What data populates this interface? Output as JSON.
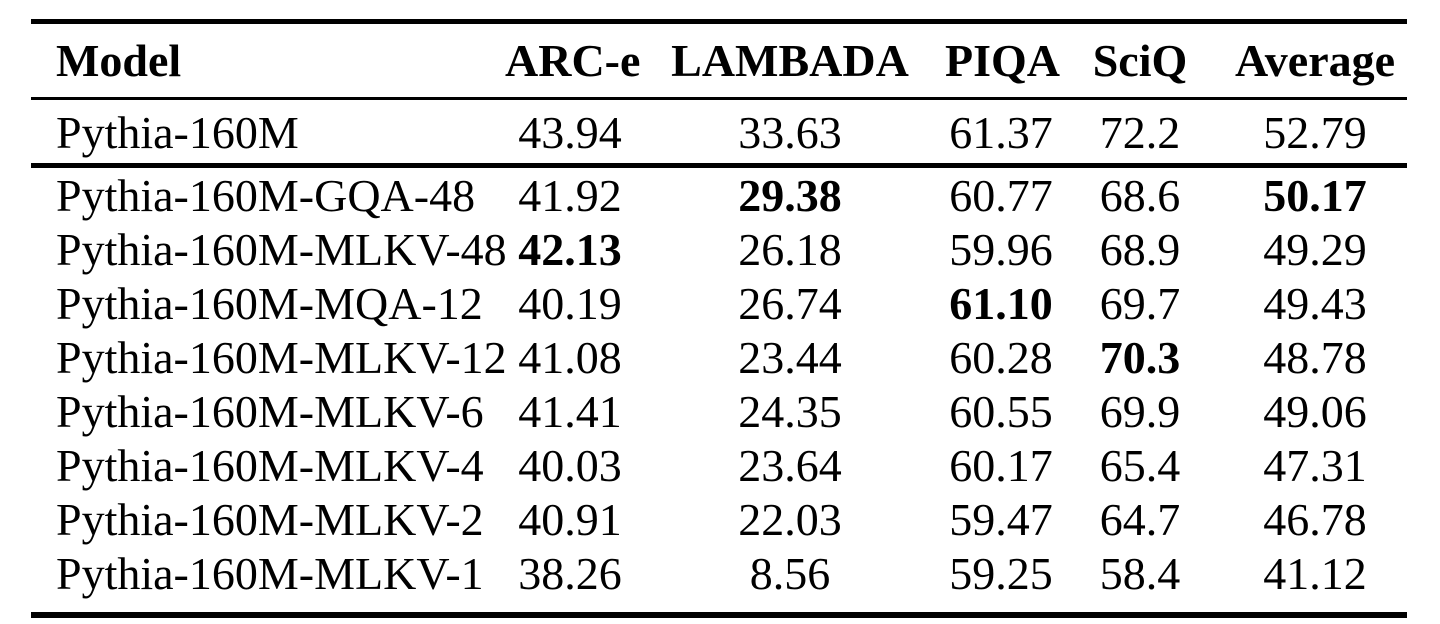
{
  "page": {
    "background_color": "#ffffff",
    "text_color": "#000000"
  },
  "table": {
    "columns": [
      {
        "label": "Model",
        "align": "left"
      },
      {
        "label": "ARC-e",
        "align": "center"
      },
      {
        "label": "LAMBADA",
        "align": "center"
      },
      {
        "label": "PIQA",
        "align": "center"
      },
      {
        "label": "SciQ",
        "align": "center"
      },
      {
        "label": "Average",
        "align": "center"
      }
    ],
    "rows": [
      {
        "cells": [
          "Pythia-160M",
          "43.94",
          "33.63",
          "61.37",
          "72.2",
          "52.79"
        ],
        "bold_cells": [],
        "section": "baseline"
      },
      {
        "cells": [
          "Pythia-160M-GQA-48",
          "41.92",
          "29.38",
          "60.77",
          "68.6",
          "50.17"
        ],
        "bold_cells": [
          2,
          5
        ],
        "section": "variants"
      },
      {
        "cells": [
          "Pythia-160M-MLKV-48",
          "42.13",
          "26.18",
          "59.96",
          "68.9",
          "49.29"
        ],
        "bold_cells": [
          1
        ],
        "section": "variants"
      },
      {
        "cells": [
          "Pythia-160M-MQA-12",
          "40.19",
          "26.74",
          "61.10",
          "69.7",
          "49.43"
        ],
        "bold_cells": [
          3
        ],
        "section": "variants"
      },
      {
        "cells": [
          "Pythia-160M-MLKV-12",
          "41.08",
          "23.44",
          "60.28",
          "70.3",
          "48.78"
        ],
        "bold_cells": [
          4
        ],
        "section": "variants"
      },
      {
        "cells": [
          "Pythia-160M-MLKV-6",
          "41.41",
          "24.35",
          "60.55",
          "69.9",
          "49.06"
        ],
        "bold_cells": [],
        "section": "variants"
      },
      {
        "cells": [
          "Pythia-160M-MLKV-4",
          "40.03",
          "23.64",
          "60.17",
          "65.4",
          "47.31"
        ],
        "bold_cells": [],
        "section": "variants"
      },
      {
        "cells": [
          "Pythia-160M-MLKV-2",
          "40.91",
          "22.03",
          "59.47",
          "64.7",
          "46.78"
        ],
        "bold_cells": [],
        "section": "variants"
      },
      {
        "cells": [
          "Pythia-160M-MLKV-1",
          "38.26",
          "8.56",
          "59.25",
          "58.4",
          "41.12"
        ],
        "bold_cells": [],
        "section": "variants"
      }
    ]
  }
}
